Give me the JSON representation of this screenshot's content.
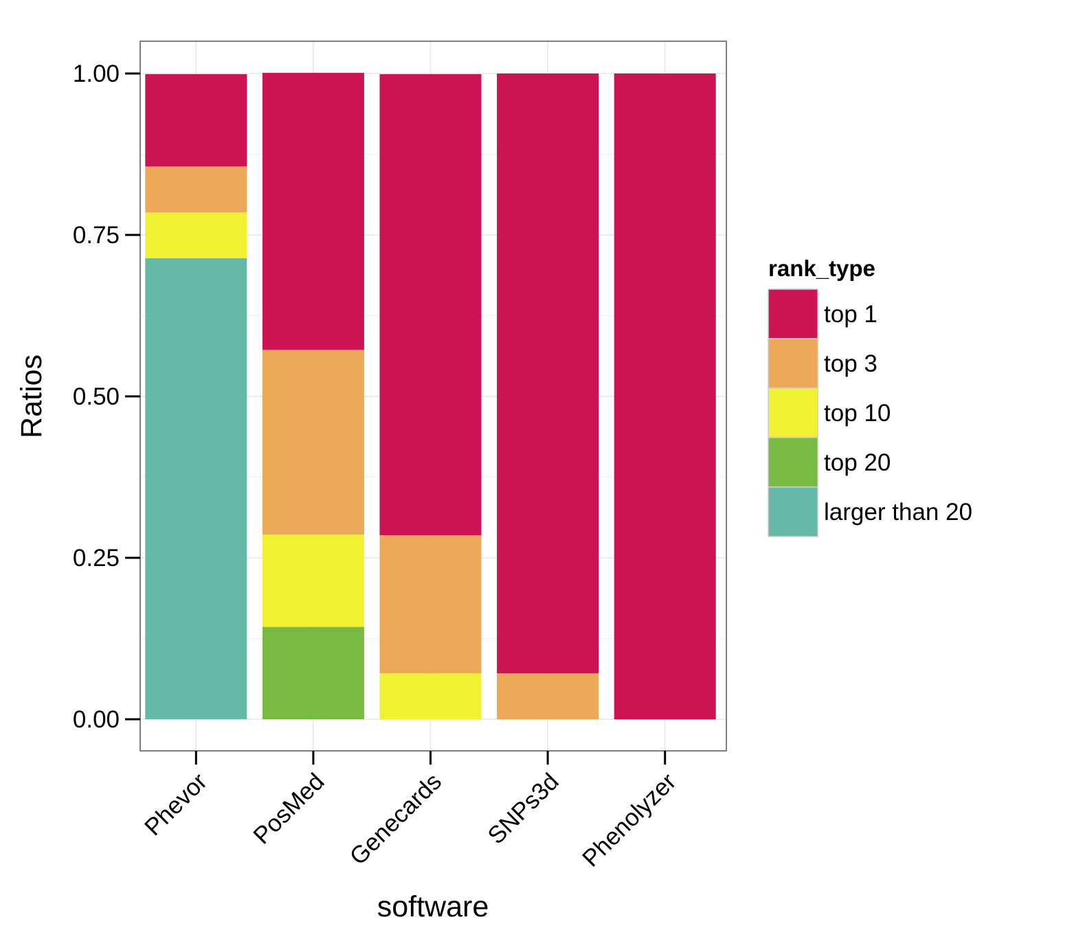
{
  "chart_data": {
    "type": "bar",
    "stacked": true,
    "xlabel": "software",
    "ylabel": "Ratios",
    "categories": [
      "Phevor",
      "PosMed",
      "Genecards",
      "SNPs3d",
      "Phenolyzer"
    ],
    "ylim": [
      -0.05,
      1.05
    ],
    "yticks": [
      "0.00",
      "0.25",
      "0.50",
      "0.75",
      "1.00"
    ],
    "grid": true,
    "legend_title": "rank_type",
    "legend_position": "right",
    "series": [
      {
        "name": "larger than 20",
        "color": "#66B8A8",
        "values": [
          0.714,
          0.0,
          0.0,
          0.0,
          0.0
        ]
      },
      {
        "name": "top 20",
        "color": "#79BA44",
        "values": [
          0.0,
          0.143,
          0.0,
          0.0,
          0.0
        ]
      },
      {
        "name": "top 10",
        "color": "#F1F133",
        "values": [
          0.071,
          0.143,
          0.071,
          0.0,
          0.0
        ]
      },
      {
        "name": "top 3",
        "color": "#EDA957",
        "values": [
          0.071,
          0.286,
          0.214,
          0.071,
          0.0
        ]
      },
      {
        "name": "top 1",
        "color": "#CC1455",
        "values": [
          0.143,
          0.429,
          0.714,
          0.929,
          1.0
        ]
      }
    ],
    "legend_order": [
      "top 1",
      "top 3",
      "top 10",
      "top 20",
      "larger than 20"
    ]
  }
}
